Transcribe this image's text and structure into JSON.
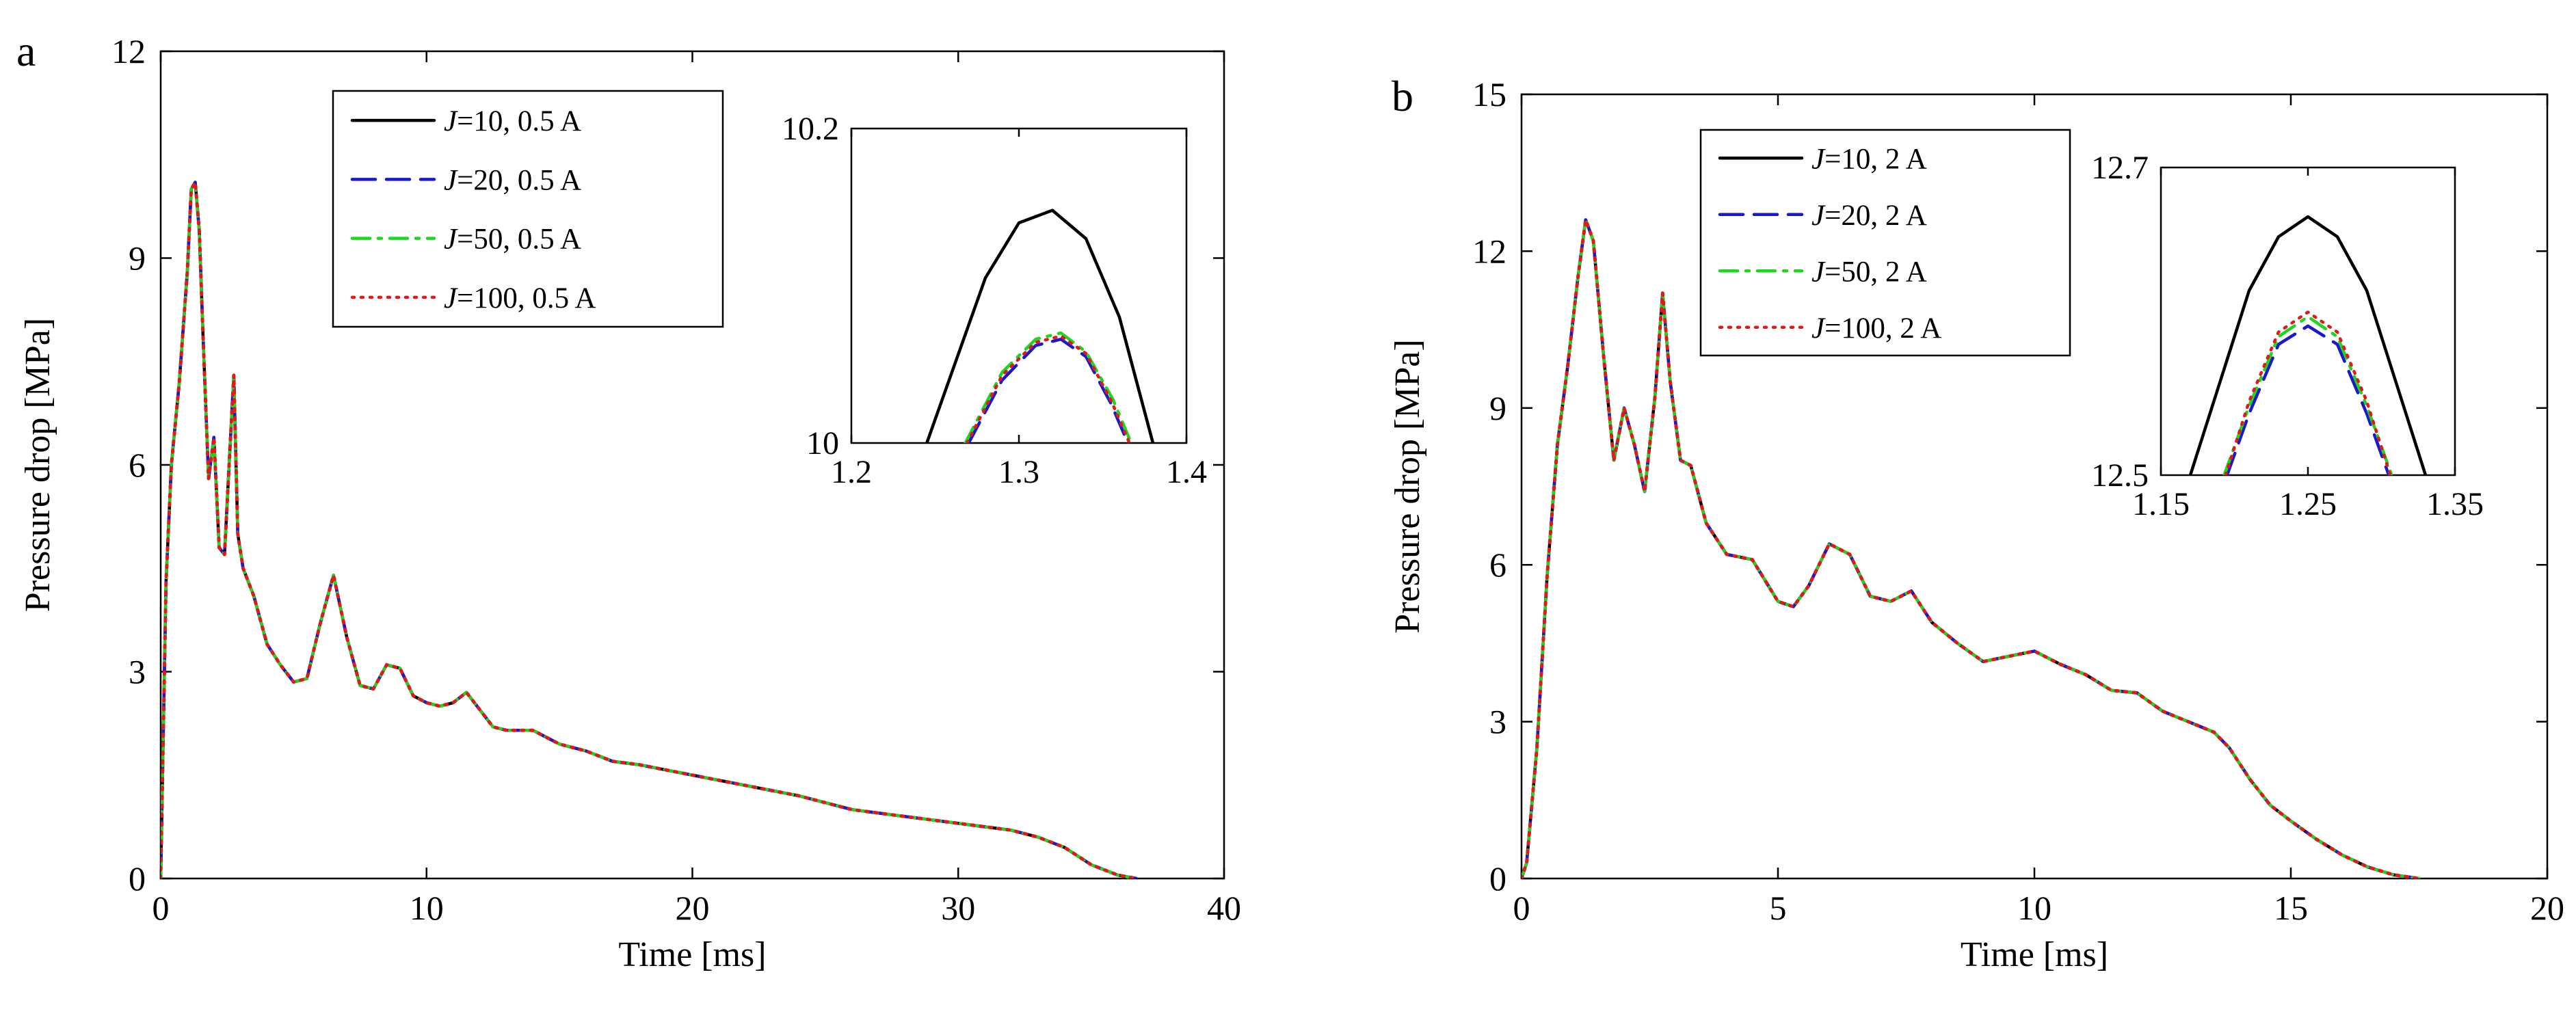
{
  "chart_data": [
    {
      "panel": "a",
      "type": "line",
      "xlabel": "Time [ms]",
      "ylabel": "Pressure drop [MPa]",
      "xlim": [
        0,
        40
      ],
      "ylim": [
        0,
        12
      ],
      "xticks": [
        0,
        10,
        20,
        30,
        40
      ],
      "yticks": [
        0,
        3,
        6,
        9,
        12
      ],
      "legend": {
        "position": "top-center",
        "entries": [
          {
            "italic": "J",
            "rest": "=10, 0.5 A"
          },
          {
            "italic": "J",
            "rest": "=20, 0.5 A"
          },
          {
            "italic": "J",
            "rest": "=50, 0.5 A"
          },
          {
            "italic": "J",
            "rest": "=100, 0.5 A"
          }
        ]
      },
      "series_shared": {
        "x": [
          0,
          0.2,
          0.4,
          0.7,
          1.0,
          1.15,
          1.3,
          1.45,
          1.6,
          1.8,
          2.0,
          2.2,
          2.4,
          2.6,
          2.75,
          2.9,
          3.1,
          3.5,
          4.0,
          4.5,
          5.0,
          5.5,
          6.0,
          6.5,
          7.0,
          7.5,
          8.0,
          8.5,
          9.0,
          9.5,
          10.0,
          10.5,
          11.0,
          11.5,
          12.0,
          12.5,
          13.0,
          14.0,
          15.0,
          16.0,
          17.0,
          18.0,
          20.0,
          22.0,
          24.0,
          26.0,
          28.0,
          30.0,
          32.0,
          33.0,
          34.0,
          35.0,
          36.0,
          36.7
        ],
        "y": [
          0,
          4.3,
          6.0,
          7.2,
          8.8,
          10.0,
          10.1,
          9.4,
          7.8,
          5.8,
          6.4,
          4.8,
          4.7,
          6.2,
          7.3,
          5.0,
          4.5,
          4.1,
          3.4,
          3.1,
          2.85,
          2.9,
          3.7,
          4.4,
          3.5,
          2.8,
          2.75,
          3.1,
          3.05,
          2.65,
          2.55,
          2.5,
          2.55,
          2.7,
          2.45,
          2.2,
          2.15,
          2.15,
          1.95,
          1.85,
          1.7,
          1.65,
          1.5,
          1.35,
          1.2,
          1.0,
          0.9,
          0.8,
          0.7,
          0.6,
          0.45,
          0.2,
          0.05,
          0
        ]
      },
      "series": [
        {
          "name": "J=10, 0.5 A",
          "color": "#000000",
          "dash": "solid",
          "y_offset": 0
        },
        {
          "name": "J=20, 0.5 A",
          "color": "#1a1acc",
          "dash": "dashed",
          "y_offset": 0
        },
        {
          "name": "J=50, 0.5 A",
          "color": "#1ed61e",
          "dash": "dashdot",
          "y_offset": 0
        },
        {
          "name": "J=100, 0.5 A",
          "color": "#e01a1a",
          "dash": "dotted",
          "y_offset": 0
        }
      ],
      "inset": {
        "xlim": [
          1.2,
          1.4
        ],
        "ylim": [
          10,
          10.2
        ],
        "xticks": [
          1.2,
          1.3,
          1.4
        ],
        "xtick_labels": [
          "1.2",
          "1.3",
          "1.4"
        ],
        "ytick_labels": [
          "10",
          "10.2"
        ],
        "curves": [
          {
            "series": 0,
            "x": [
              1.245,
              1.26,
              1.28,
              1.3,
              1.32,
              1.34,
              1.36,
              1.38
            ],
            "y": [
              10.0,
              10.045,
              10.105,
              10.14,
              10.148,
              10.13,
              10.08,
              10.0
            ]
          },
          {
            "series": 1,
            "x": [
              1.27,
              1.29,
              1.31,
              1.325,
              1.34,
              1.355,
              1.365
            ],
            "y": [
              10.0,
              10.04,
              10.062,
              10.066,
              10.055,
              10.025,
              10.0
            ]
          },
          {
            "series": 2,
            "x": [
              1.268,
              1.29,
              1.31,
              1.325,
              1.34,
              1.356,
              1.367
            ],
            "y": [
              10.0,
              10.045,
              10.066,
              10.07,
              10.058,
              10.028,
              10.0
            ]
          },
          {
            "series": 3,
            "x": [
              1.269,
              1.29,
              1.31,
              1.325,
              1.34,
              1.355,
              1.366
            ],
            "y": [
              10.0,
              10.043,
              10.064,
              10.068,
              10.057,
              10.027,
              10.0
            ]
          }
        ]
      }
    },
    {
      "panel": "b",
      "type": "line",
      "xlabel": "Time [ms]",
      "ylabel": "Pressure drop [MPa]",
      "xlim": [
        0,
        20
      ],
      "ylim": [
        0,
        15
      ],
      "xticks": [
        0,
        5,
        10,
        15,
        20
      ],
      "yticks": [
        0,
        3,
        6,
        9,
        12,
        15
      ],
      "legend": {
        "position": "top-center",
        "entries": [
          {
            "italic": "J",
            "rest": "=10, 2 A"
          },
          {
            "italic": "J",
            "rest": "=20, 2 A"
          },
          {
            "italic": "J",
            "rest": "=50, 2 A"
          },
          {
            "italic": "J",
            "rest": "=100, 2 A"
          }
        ]
      },
      "series_shared": {
        "x": [
          0,
          0.1,
          0.3,
          0.5,
          0.7,
          0.9,
          1.1,
          1.25,
          1.4,
          1.6,
          1.8,
          2.0,
          2.2,
          2.4,
          2.6,
          2.75,
          2.9,
          3.1,
          3.3,
          3.6,
          4.0,
          4.5,
          5.0,
          5.3,
          5.6,
          6.0,
          6.4,
          6.8,
          7.2,
          7.6,
          8.0,
          8.5,
          9.0,
          9.5,
          10.0,
          10.5,
          11.0,
          11.5,
          12.0,
          12.5,
          13.0,
          13.5,
          13.8,
          14.2,
          14.6,
          15.0,
          15.5,
          16.0,
          16.5,
          17.0,
          17.5
        ],
        "y": [
          0,
          0.3,
          2.5,
          5.8,
          8.3,
          9.8,
          11.5,
          12.6,
          12.2,
          10.0,
          8.0,
          9.0,
          8.3,
          7.4,
          9.2,
          11.2,
          9.5,
          8.0,
          7.9,
          6.8,
          6.2,
          6.1,
          5.3,
          5.2,
          5.6,
          6.4,
          6.2,
          5.4,
          5.3,
          5.5,
          4.9,
          4.5,
          4.15,
          4.25,
          4.35,
          4.1,
          3.9,
          3.6,
          3.55,
          3.2,
          3.0,
          2.8,
          2.5,
          1.9,
          1.4,
          1.1,
          0.75,
          0.45,
          0.22,
          0.07,
          0
        ]
      },
      "series": [
        {
          "name": "J=10, 2 A",
          "color": "#000000",
          "dash": "solid",
          "y_offset": 0
        },
        {
          "name": "J=20, 2 A",
          "color": "#1a1acc",
          "dash": "dashed",
          "y_offset": 0
        },
        {
          "name": "J=50, 2 A",
          "color": "#1ed61e",
          "dash": "dashdot",
          "y_offset": 0
        },
        {
          "name": "J=100, 2 A",
          "color": "#e01a1a",
          "dash": "dotted",
          "y_offset": 0
        }
      ],
      "inset": {
        "xlim": [
          1.15,
          1.35
        ],
        "ylim": [
          12.5,
          12.7
        ],
        "xticks": [
          1.15,
          1.25,
          1.35
        ],
        "xtick_labels": [
          "1.15",
          "1.25",
          "1.35"
        ],
        "ytick_labels": [
          "12.5",
          "12.7"
        ],
        "curves": [
          {
            "series": 0,
            "x": [
              1.17,
              1.19,
              1.21,
              1.23,
              1.25,
              1.27,
              1.29,
              1.31,
              1.33
            ],
            "y": [
              12.5,
              12.56,
              12.62,
              12.655,
              12.668,
              12.655,
              12.62,
              12.56,
              12.5
            ]
          },
          {
            "series": 1,
            "x": [
              1.195,
              1.21,
              1.23,
              1.25,
              1.27,
              1.29,
              1.305
            ],
            "y": [
              12.5,
              12.54,
              12.585,
              12.597,
              12.585,
              12.54,
              12.5
            ]
          },
          {
            "series": 2,
            "x": [
              1.193,
              1.21,
              1.23,
              1.25,
              1.27,
              1.29,
              1.307
            ],
            "y": [
              12.5,
              12.545,
              12.59,
              12.603,
              12.59,
              12.545,
              12.5
            ]
          },
          {
            "series": 3,
            "x": [
              1.194,
              1.21,
              1.23,
              1.25,
              1.27,
              1.29,
              1.306
            ],
            "y": [
              12.5,
              12.548,
              12.593,
              12.606,
              12.593,
              12.548,
              12.5
            ]
          }
        ]
      }
    }
  ]
}
